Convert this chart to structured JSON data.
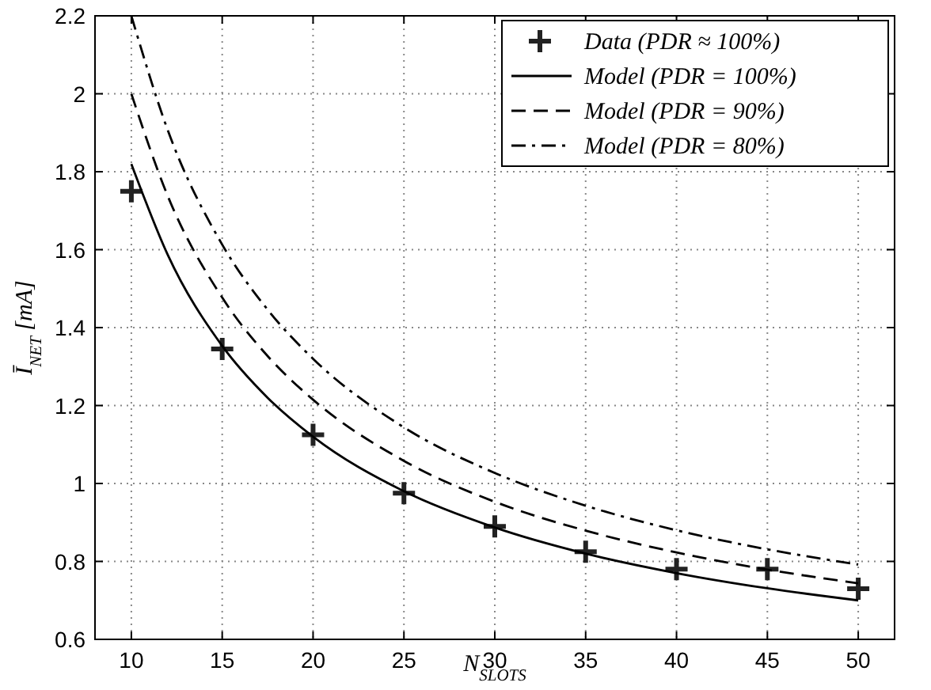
{
  "chart_data": {
    "type": "line",
    "xlabel": "N$_{SLOTS}$",
    "ylabel": "Ī$_{NET}$ [mA]",
    "xlim": [
      8,
      52
    ],
    "xticks": [
      10,
      15,
      20,
      25,
      30,
      35,
      40,
      45,
      50
    ],
    "ylim": [
      0.6,
      2.2
    ],
    "yticks": [
      0.6,
      0.8,
      {
        "value": 1,
        "label": "1"
      },
      1.2,
      1.4,
      1.6,
      1.8,
      {
        "value": 2,
        "label": "2"
      },
      2.2
    ],
    "grid": true,
    "legend": "top right",
    "series": [
      {
        "name": "Data (PDR ≈ 100%)",
        "type": "scatter",
        "marker": "cross",
        "color": "#222222",
        "x": [
          10,
          15,
          20,
          25,
          30,
          35,
          40,
          45,
          50
        ],
        "values": [
          1.75,
          1.345,
          1.125,
          0.975,
          0.89,
          0.825,
          0.78,
          0.78,
          0.73
        ]
      },
      {
        "name": "Model (PDR = 100%)",
        "line_style": "solid",
        "color": "#000000",
        "x": [
          10,
          12,
          15,
          17.5,
          20,
          25,
          30,
          35,
          40,
          45,
          50
        ],
        "values": [
          1.82,
          1.587,
          1.353,
          1.22,
          1.12,
          0.98,
          0.887,
          0.82,
          0.77,
          0.731,
          0.7
        ]
      },
      {
        "name": "Model (PDR = 90%)",
        "line_style": "dashed",
        "color": "#000000",
        "x": [
          10,
          12,
          15,
          17.5,
          20,
          25,
          30,
          35,
          40,
          45,
          50
        ],
        "values": [
          2.0,
          1.738,
          1.477,
          1.327,
          1.215,
          1.058,
          0.953,
          0.879,
          0.823,
          0.779,
          0.744
        ]
      },
      {
        "name": "Model (PDR = 80%)",
        "line_style": "dashdot",
        "color": "#000000",
        "x": [
          10,
          12,
          15,
          17.5,
          20,
          25,
          30,
          35,
          40,
          45,
          50
        ],
        "values": [
          2.2,
          1.907,
          1.613,
          1.446,
          1.32,
          1.144,
          1.027,
          0.943,
          0.88,
          0.831,
          0.792
        ]
      }
    ]
  }
}
